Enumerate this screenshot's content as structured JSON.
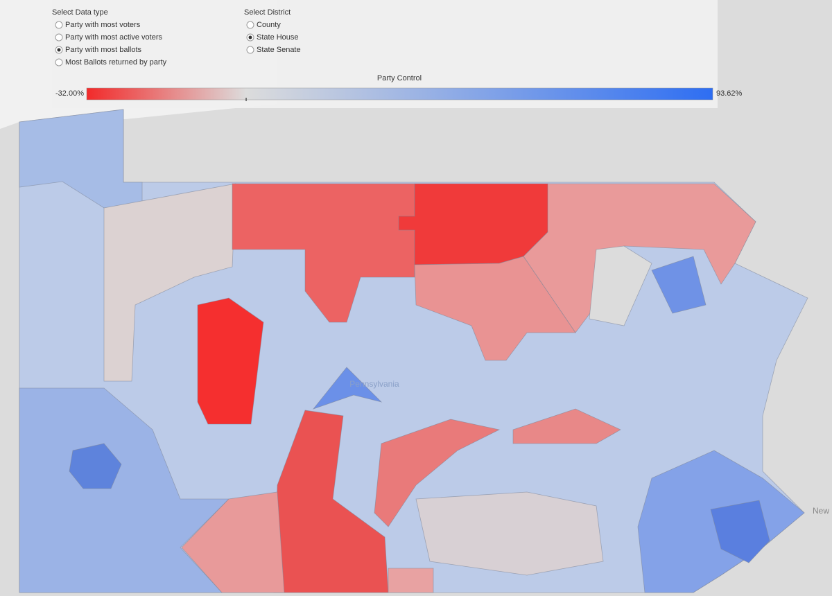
{
  "controls": {
    "data_type": {
      "label": "Select Data type",
      "options": [
        "Party with most voters",
        "Party with most active voters",
        "Party with most ballots",
        "Most Ballots returned by party"
      ],
      "selected": 2
    },
    "district": {
      "label": "Select District",
      "options": [
        "County",
        "State House",
        "State Senate"
      ],
      "selected": 1
    }
  },
  "legend": {
    "title": "Party Control",
    "min": {
      "value": -32,
      "label": "-32.00%"
    },
    "max": {
      "value": 93.62,
      "label": "93.62%"
    },
    "center": 0,
    "colors": {
      "low": "#f22a2a",
      "mid": "#dcdcdc",
      "high": "#2e6ef2"
    }
  },
  "map": {
    "state_label": "Pennsylvania",
    "neighbor_label": "New"
  }
}
